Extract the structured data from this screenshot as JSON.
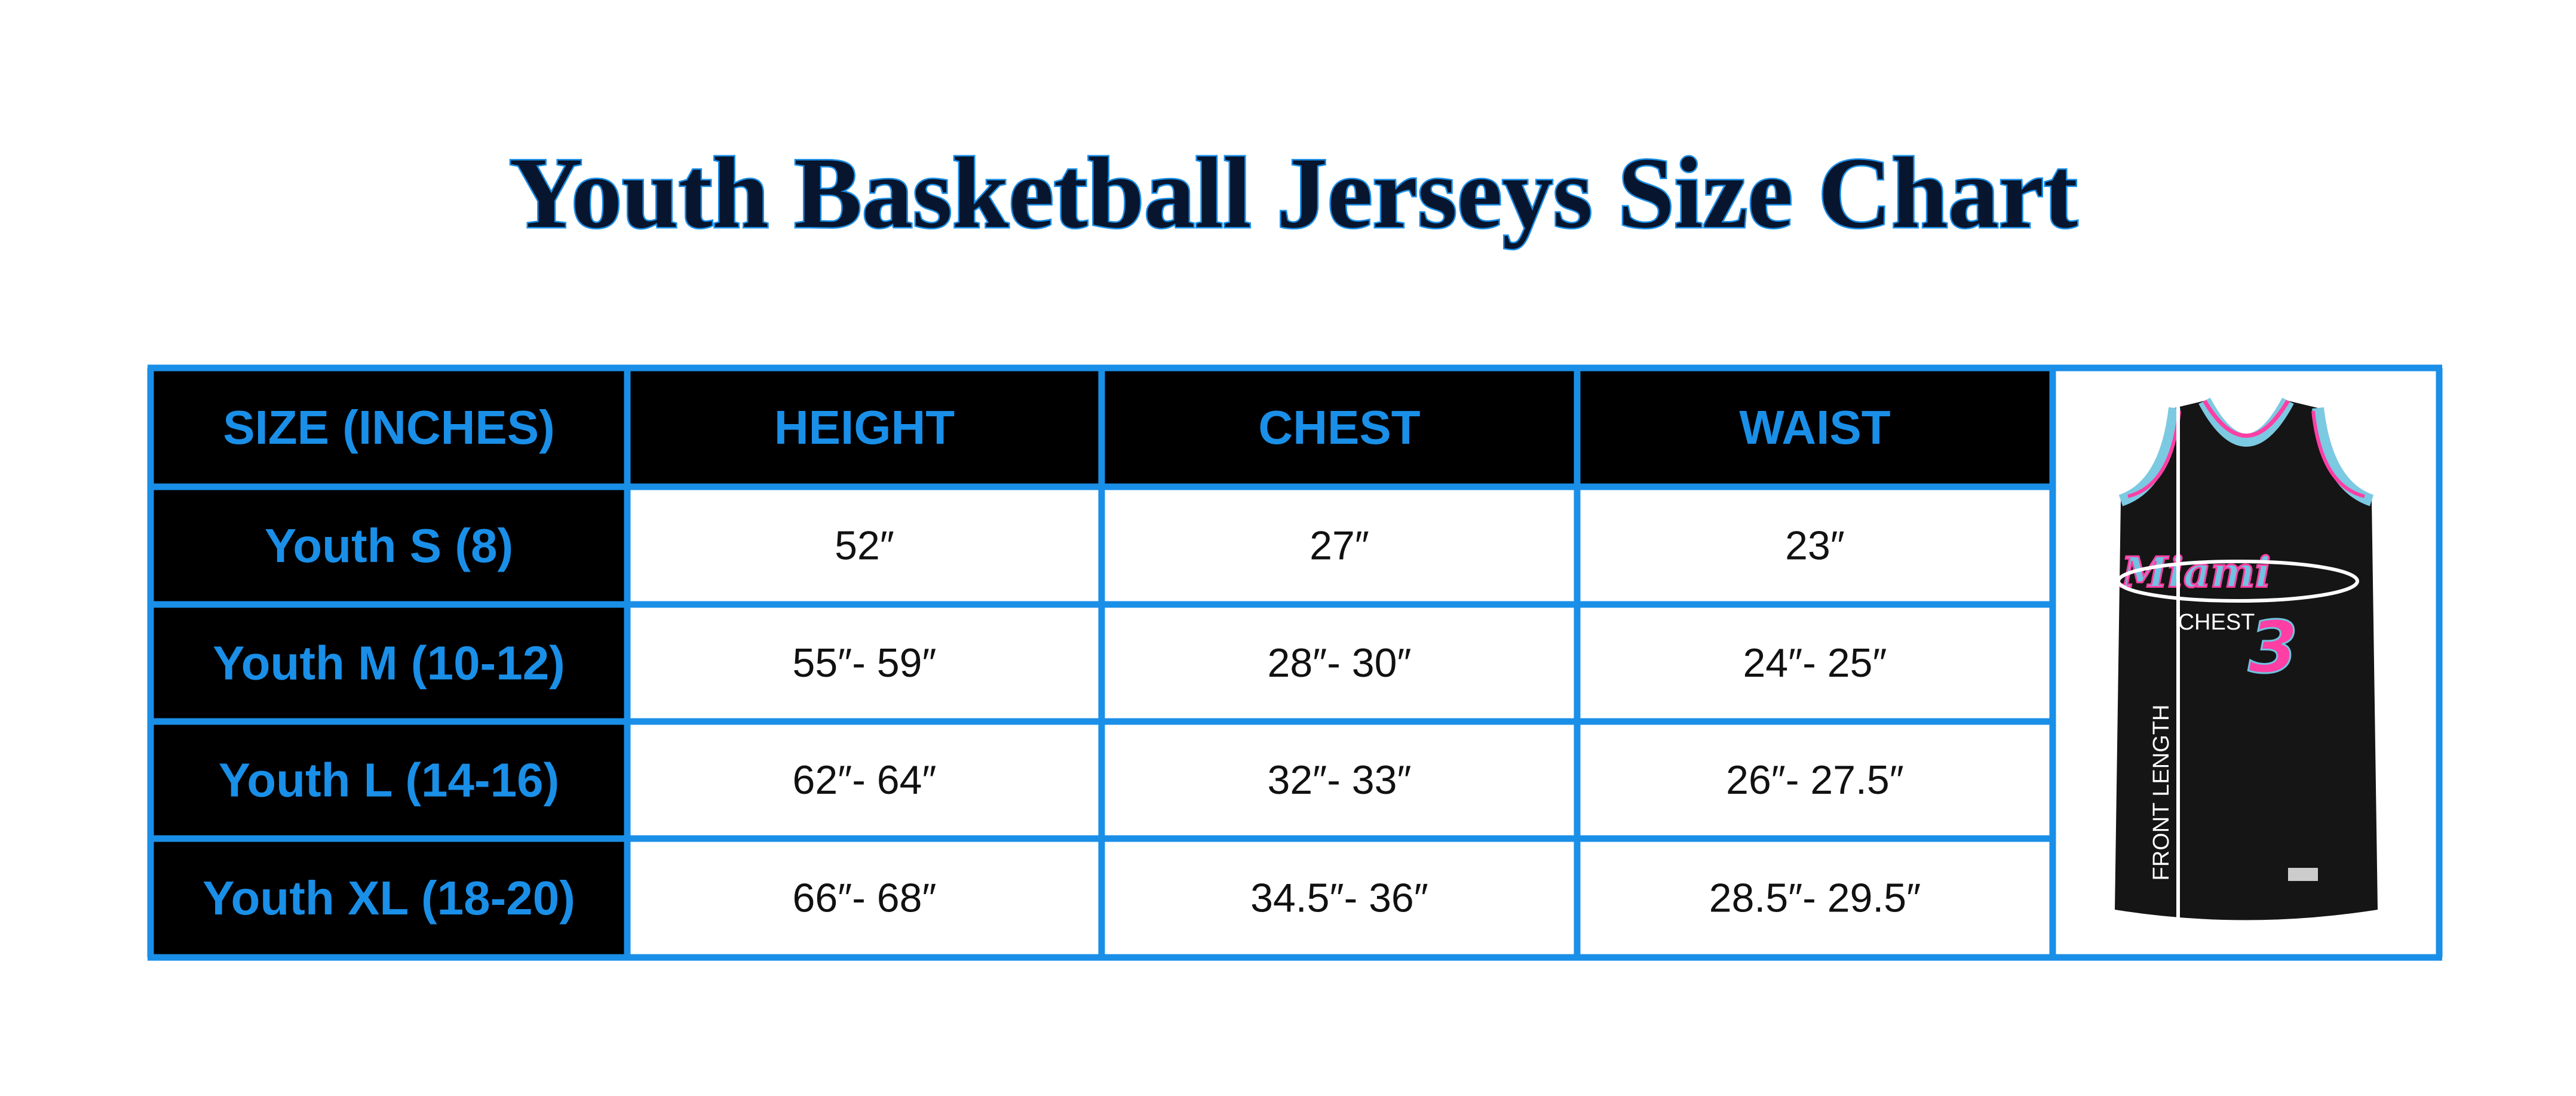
{
  "header": {
    "title": "Youth Basketball Jerseys Size Chart"
  },
  "table": {
    "columns": [
      "SIZE (INCHES)",
      "HEIGHT",
      "CHEST",
      "WAIST"
    ],
    "rows": [
      [
        "Youth S (8)",
        "52″",
        "27″",
        "23″"
      ],
      [
        "Youth M (10-12)",
        "55″- 59″",
        "28″- 30″",
        "24″- 25″"
      ],
      [
        "Youth L (14-16)",
        "62″- 64″",
        "32″- 33″",
        "26″- 27.5″"
      ],
      [
        "Youth XL (18-20)",
        "66″- 68″",
        "34.5″- 36″",
        "28.5″- 29.5″"
      ]
    ]
  },
  "image": {
    "team": "Miami",
    "number": "3",
    "chest": "CHEST",
    "front_length": "FRONT LENGTH"
  }
}
